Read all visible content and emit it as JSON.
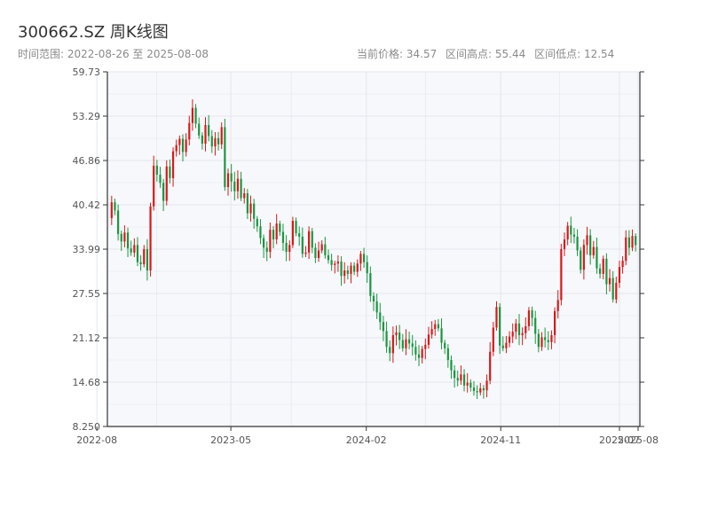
{
  "header": {
    "title": "300662.SZ 周K线图",
    "range_label": "时间范围: 2022-08-26 至 2025-08-08",
    "current_price_label": "当前价格: 34.57",
    "high_label": "区间高点: 55.44",
    "low_label": "区间低点: 12.54"
  },
  "colors": {
    "up": "#d7191c",
    "down": "#1a9641",
    "plot_bg": "#f7f8fb",
    "grid": "#e3e6ec",
    "axis": "#333333"
  },
  "chart_data": {
    "type": "candlestick",
    "title": "300662.SZ 周K线图",
    "x_start": "2022-08-26",
    "x_end": "2025-08-08",
    "x_ticks": [
      "2022-08",
      "2023-05",
      "2024-02",
      "2024-11",
      "2025-07",
      "2025-08"
    ],
    "y_ticks": [
      "59.73",
      "53.29",
      "46.86",
      "40.42",
      "33.99",
      "27.55",
      "21.12",
      "14.68",
      "8.250"
    ],
    "ylim": [
      8.25,
      59.73
    ],
    "grid": true,
    "current_price": 34.57,
    "high": 55.44,
    "low": 12.54,
    "closes": [
      40.8,
      39.6,
      36.2,
      35.1,
      36.4,
      34.1,
      33.5,
      34.6,
      32.1,
      31.8,
      34.0,
      30.9,
      40.2,
      46.1,
      44.8,
      43.6,
      41.0,
      46.0,
      44.3,
      48.2,
      49.1,
      50.0,
      48.1,
      49.9,
      52.3,
      54.5,
      52.2,
      50.5,
      49.3,
      52.0,
      50.4,
      48.9,
      50.1,
      49.2,
      51.7,
      43.0,
      45.0,
      43.8,
      42.4,
      44.2,
      41.4,
      42.1,
      39.2,
      40.6,
      38.4,
      37.3,
      35.6,
      34.2,
      33.6,
      36.8,
      35.4,
      37.7,
      36.5,
      34.9,
      33.6,
      34.6,
      38.1,
      36.3,
      35.8,
      33.3,
      33.5,
      36.6,
      34.2,
      32.7,
      33.8,
      34.7,
      33.1,
      32.4,
      31.7,
      31.9,
      32.2,
      30.1,
      30.9,
      30.4,
      31.6,
      30.7,
      31.9,
      33.3,
      32.1,
      30.5,
      27.2,
      26.4,
      24.8,
      23.4,
      22.1,
      19.8,
      18.9,
      21.5,
      21.9,
      20.8,
      19.6,
      20.9,
      20.3,
      19.8,
      18.7,
      18.2,
      19.5,
      20.1,
      21.6,
      22.4,
      23.1,
      22.5,
      20.4,
      19.6,
      17.9,
      16.4,
      15.3,
      14.9,
      15.8,
      14.2,
      14.6,
      13.9,
      13.4,
      13.2,
      13.8,
      13.5,
      14.9,
      19.1,
      22.6,
      25.6,
      20.0,
      19.6,
      20.4,
      21.3,
      22.0,
      23.2,
      21.5,
      21.8,
      22.8,
      25.1,
      24.0,
      21.7,
      19.8,
      21.2,
      20.8,
      20.5,
      21.5,
      25.0,
      26.6,
      34.0,
      35.4,
      37.4,
      36.1,
      35.8,
      33.8,
      31.0,
      34.6,
      36.0,
      33.1,
      34.3,
      31.2,
      30.4,
      32.6,
      28.9,
      29.8,
      26.7,
      29.1,
      31.4,
      32.3,
      35.7,
      34.2,
      35.9,
      34.57
    ],
    "first_open": 38.5
  }
}
